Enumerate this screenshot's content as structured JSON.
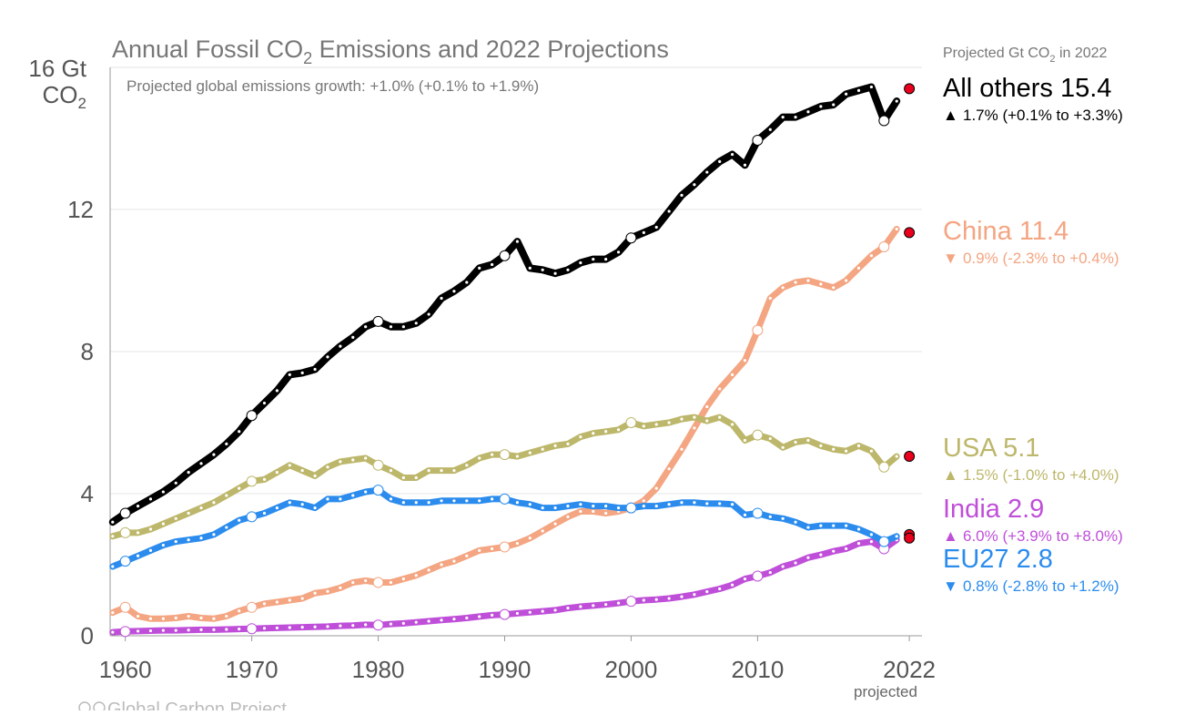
{
  "chart_data": {
    "type": "line",
    "title": "Annual Fossil CO2 Emissions and 2022 Projections",
    "subtitle": "Projected global emissions growth: +1.0% (+0.1% to +1.9%)",
    "ylabel_line1": "16 Gt",
    "ylabel_line2": "CO2",
    "ylim": [
      0,
      16
    ],
    "xlim": [
      1958.8,
      2023
    ],
    "y_ticks": [
      "0",
      "4",
      "8",
      "12"
    ],
    "x_ticks": [
      1960,
      1970,
      1980,
      1990,
      2000,
      2010,
      2022
    ],
    "x_tick_note": "projected",
    "legend_header": "Projected Gt CO2 in 2022",
    "source": "Global Carbon Project",
    "grid": true,
    "series": [
      {
        "key": "others",
        "name": "All others",
        "projection": "15.4",
        "change_symbol": "▲",
        "change_text": "1.7% (+0.1% to +3.3%)",
        "color": "#000000",
        "line_width": 8,
        "x": [
          1959,
          1960,
          1961,
          1962,
          1963,
          1964,
          1965,
          1966,
          1967,
          1968,
          1969,
          1970,
          1971,
          1972,
          1973,
          1974,
          1975,
          1976,
          1977,
          1978,
          1979,
          1980,
          1981,
          1982,
          1983,
          1984,
          1985,
          1986,
          1987,
          1988,
          1989,
          1990,
          1991,
          1992,
          1993,
          1994,
          1995,
          1996,
          1997,
          1998,
          1999,
          2000,
          2001,
          2002,
          2003,
          2004,
          2005,
          2006,
          2007,
          2008,
          2009,
          2010,
          2011,
          2012,
          2013,
          2014,
          2015,
          2016,
          2017,
          2018,
          2019,
          2020,
          2021
        ],
        "values": [
          3.2,
          3.45,
          3.65,
          3.85,
          4.05,
          4.3,
          4.6,
          4.85,
          5.1,
          5.4,
          5.75,
          6.2,
          6.55,
          6.9,
          7.35,
          7.4,
          7.5,
          7.85,
          8.15,
          8.4,
          8.7,
          8.85,
          8.7,
          8.7,
          8.8,
          9.05,
          9.5,
          9.7,
          9.95,
          10.35,
          10.45,
          10.7,
          11.1,
          10.35,
          10.3,
          10.2,
          10.3,
          10.5,
          10.6,
          10.6,
          10.8,
          11.2,
          11.35,
          11.5,
          11.95,
          12.4,
          12.7,
          13.05,
          13.35,
          13.55,
          13.25,
          13.95,
          14.25,
          14.6,
          14.6,
          14.75,
          14.9,
          14.95,
          15.25,
          15.35,
          15.45,
          14.5,
          15.05
        ],
        "circle_years": [
          1960,
          1970,
          1980,
          1990,
          2000,
          2010,
          2020
        ],
        "projected_value": 15.4
      },
      {
        "key": "china",
        "name": "China",
        "projection": "11.4",
        "change_symbol": "▼",
        "change_text": "0.9% (-2.3% to +0.4%)",
        "color": "#f4a582",
        "line_width": 7,
        "x": [
          1959,
          1960,
          1961,
          1962,
          1963,
          1964,
          1965,
          1966,
          1967,
          1968,
          1969,
          1970,
          1971,
          1972,
          1973,
          1974,
          1975,
          1976,
          1977,
          1978,
          1979,
          1980,
          1981,
          1982,
          1983,
          1984,
          1985,
          1986,
          1987,
          1988,
          1989,
          1990,
          1991,
          1992,
          1993,
          1994,
          1995,
          1996,
          1997,
          1998,
          1999,
          2000,
          2001,
          2002,
          2003,
          2004,
          2005,
          2006,
          2007,
          2008,
          2009,
          2010,
          2011,
          2012,
          2013,
          2014,
          2015,
          2016,
          2017,
          2018,
          2019,
          2020,
          2021
        ],
        "values": [
          0.65,
          0.8,
          0.55,
          0.48,
          0.48,
          0.5,
          0.55,
          0.5,
          0.48,
          0.55,
          0.7,
          0.8,
          0.9,
          0.95,
          1.0,
          1.05,
          1.2,
          1.25,
          1.35,
          1.5,
          1.55,
          1.5,
          1.5,
          1.6,
          1.7,
          1.85,
          2.0,
          2.1,
          2.25,
          2.4,
          2.45,
          2.5,
          2.6,
          2.75,
          2.95,
          3.15,
          3.35,
          3.5,
          3.5,
          3.45,
          3.5,
          3.6,
          3.8,
          4.15,
          4.7,
          5.25,
          5.85,
          6.45,
          6.95,
          7.35,
          7.75,
          8.6,
          9.5,
          9.8,
          9.95,
          10.0,
          9.9,
          9.8,
          10.0,
          10.35,
          10.7,
          10.95,
          11.45
        ],
        "circle_years": [
          1960,
          1970,
          1980,
          1990,
          2000,
          2010,
          2020
        ],
        "projected_value": 11.35
      },
      {
        "key": "usa",
        "name": "USA",
        "projection": "5.1",
        "change_symbol": "▲",
        "change_text": "1.5% (-1.0% to +4.0%)",
        "color": "#bdb76b",
        "line_width": 7,
        "x": [
          1959,
          1960,
          1961,
          1962,
          1963,
          1964,
          1965,
          1966,
          1967,
          1968,
          1969,
          1970,
          1971,
          1972,
          1973,
          1974,
          1975,
          1976,
          1977,
          1978,
          1979,
          1980,
          1981,
          1982,
          1983,
          1984,
          1985,
          1986,
          1987,
          1988,
          1989,
          1990,
          1991,
          1992,
          1993,
          1994,
          1995,
          1996,
          1997,
          1998,
          1999,
          2000,
          2001,
          2002,
          2003,
          2004,
          2005,
          2006,
          2007,
          2008,
          2009,
          2010,
          2011,
          2012,
          2013,
          2014,
          2015,
          2016,
          2017,
          2018,
          2019,
          2020,
          2021
        ],
        "values": [
          2.8,
          2.9,
          2.9,
          3.0,
          3.15,
          3.3,
          3.45,
          3.6,
          3.75,
          3.95,
          4.15,
          4.35,
          4.4,
          4.6,
          4.8,
          4.65,
          4.5,
          4.75,
          4.9,
          4.95,
          5.0,
          4.8,
          4.65,
          4.45,
          4.45,
          4.65,
          4.65,
          4.65,
          4.8,
          5.0,
          5.1,
          5.1,
          5.05,
          5.15,
          5.25,
          5.35,
          5.4,
          5.6,
          5.7,
          5.75,
          5.8,
          6.0,
          5.9,
          5.95,
          6.0,
          6.1,
          6.15,
          6.05,
          6.15,
          5.95,
          5.5,
          5.65,
          5.55,
          5.3,
          5.45,
          5.5,
          5.35,
          5.25,
          5.2,
          5.35,
          5.2,
          4.75,
          5.05
        ],
        "circle_years": [
          1960,
          1970,
          1980,
          1990,
          2000,
          2010,
          2020
        ],
        "projected_value": 5.05
      },
      {
        "key": "india",
        "name": "India",
        "projection": "2.9",
        "change_symbol": "▲",
        "change_text": "6.0% (+3.9% to +8.0%)",
        "color": "#bf4fd9",
        "line_width": 7,
        "x": [
          1959,
          1960,
          1961,
          1962,
          1963,
          1964,
          1965,
          1966,
          1967,
          1968,
          1969,
          1970,
          1971,
          1972,
          1973,
          1974,
          1975,
          1976,
          1977,
          1978,
          1979,
          1980,
          1981,
          1982,
          1983,
          1984,
          1985,
          1986,
          1987,
          1988,
          1989,
          1990,
          1991,
          1992,
          1993,
          1994,
          1995,
          1996,
          1997,
          1998,
          1999,
          2000,
          2001,
          2002,
          2003,
          2004,
          2005,
          2006,
          2007,
          2008,
          2009,
          2010,
          2011,
          2012,
          2013,
          2014,
          2015,
          2016,
          2017,
          2018,
          2019,
          2020,
          2021
        ],
        "values": [
          0.1,
          0.12,
          0.13,
          0.14,
          0.15,
          0.15,
          0.16,
          0.17,
          0.17,
          0.18,
          0.19,
          0.2,
          0.21,
          0.22,
          0.23,
          0.24,
          0.25,
          0.26,
          0.28,
          0.29,
          0.31,
          0.3,
          0.33,
          0.35,
          0.38,
          0.41,
          0.44,
          0.47,
          0.5,
          0.54,
          0.58,
          0.6,
          0.63,
          0.66,
          0.69,
          0.72,
          0.78,
          0.82,
          0.85,
          0.88,
          0.92,
          0.97,
          1.0,
          1.02,
          1.05,
          1.1,
          1.16,
          1.24,
          1.32,
          1.43,
          1.6,
          1.68,
          1.78,
          1.95,
          2.05,
          2.2,
          2.28,
          2.38,
          2.45,
          2.6,
          2.65,
          2.45,
          2.7
        ],
        "circle_years": [
          1960,
          1970,
          1980,
          1990,
          2000,
          2010,
          2020
        ],
        "projected_value": 2.85
      },
      {
        "key": "eu",
        "name": "EU27",
        "projection": "2.8",
        "change_symbol": "▼",
        "change_text": "0.8% (-2.8% to +1.2%)",
        "color": "#2b8cee",
        "line_width": 7,
        "x": [
          1959,
          1960,
          1961,
          1962,
          1963,
          1964,
          1965,
          1966,
          1967,
          1968,
          1969,
          1970,
          1971,
          1972,
          1973,
          1974,
          1975,
          1976,
          1977,
          1978,
          1979,
          1980,
          1981,
          1982,
          1983,
          1984,
          1985,
          1986,
          1987,
          1988,
          1989,
          1990,
          1991,
          1992,
          1993,
          1994,
          1995,
          1996,
          1997,
          1998,
          1999,
          2000,
          2001,
          2002,
          2003,
          2004,
          2005,
          2006,
          2007,
          2008,
          2009,
          2010,
          2011,
          2012,
          2013,
          2014,
          2015,
          2016,
          2017,
          2018,
          2019,
          2020,
          2021
        ],
        "values": [
          1.95,
          2.1,
          2.25,
          2.4,
          2.55,
          2.65,
          2.7,
          2.75,
          2.85,
          3.05,
          3.25,
          3.35,
          3.45,
          3.6,
          3.75,
          3.7,
          3.6,
          3.85,
          3.85,
          3.95,
          4.05,
          4.1,
          3.85,
          3.75,
          3.75,
          3.75,
          3.8,
          3.8,
          3.8,
          3.8,
          3.85,
          3.85,
          3.75,
          3.7,
          3.6,
          3.6,
          3.65,
          3.7,
          3.65,
          3.65,
          3.6,
          3.6,
          3.65,
          3.65,
          3.7,
          3.75,
          3.75,
          3.72,
          3.72,
          3.7,
          3.4,
          3.45,
          3.35,
          3.3,
          3.2,
          3.05,
          3.1,
          3.1,
          3.1,
          3.0,
          2.85,
          2.65,
          2.8
        ],
        "circle_years": [
          1960,
          1970,
          1980,
          1990,
          2000,
          2010,
          2020
        ],
        "projected_value": 2.75
      }
    ]
  }
}
